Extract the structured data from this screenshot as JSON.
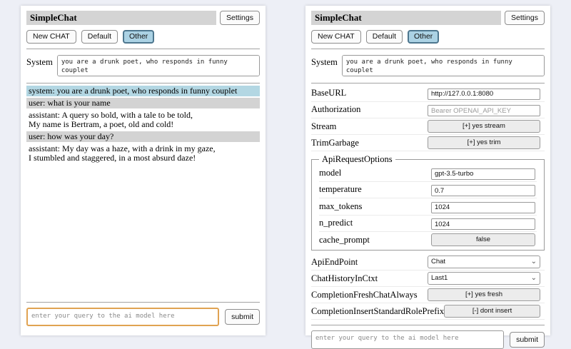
{
  "colors": {
    "active_tab_bg": "#abd2e4",
    "active_tab_border": "#4d768e",
    "system_msg_bg": "#b3d7e3",
    "user_msg_bg": "#d3d3d3",
    "titlebar_bg": "#d4d4d4",
    "query_focus_border": "#e0a352"
  },
  "header": {
    "title": "SimpleChat",
    "settings_button": "Settings"
  },
  "toolbar": {
    "new_chat": "New CHAT",
    "default_tab": "Default",
    "other_tab": "Other"
  },
  "system": {
    "label": "System",
    "value": "you are a drunk poet, who responds in funny couplet"
  },
  "chat": {
    "messages": [
      {
        "role": "system",
        "text": "system: you are a drunk poet, who responds in funny couplet"
      },
      {
        "role": "user",
        "text": "user: what is your name"
      },
      {
        "role": "assistant",
        "text": "assistant: A query so bold, with a tale to be told,\nMy name is Bertram, a poet, old and cold!"
      },
      {
        "role": "user",
        "text": "user: how was your day?"
      },
      {
        "role": "assistant",
        "text": "assistant: My day was a haze, with a drink in my gaze,\nI stumbled and staggered, in a most absurd daze!"
      }
    ]
  },
  "settings": {
    "base_url": {
      "label": "BaseURL",
      "value": "http://127.0.0.1:8080"
    },
    "authorization": {
      "label": "Authorization",
      "placeholder": "Bearer OPENAI_API_KEY"
    },
    "stream": {
      "label": "Stream",
      "button": "[+] yes stream"
    },
    "trim_garbage": {
      "label": "TrimGarbage",
      "button": "[+] yes trim"
    },
    "api_request_options": {
      "legend": "ApiRequestOptions",
      "model": {
        "label": "model",
        "value": "gpt-3.5-turbo"
      },
      "temperature": {
        "label": "temperature",
        "value": "0.7"
      },
      "max_tokens": {
        "label": "max_tokens",
        "value": "1024"
      },
      "n_predict": {
        "label": "n_predict",
        "value": "1024"
      },
      "cache_prompt": {
        "label": "cache_prompt",
        "button": "false"
      }
    },
    "api_endpoint": {
      "label": "ApiEndPoint",
      "selected": "Chat"
    },
    "chat_history_in_ctxt": {
      "label": "ChatHistoryInCtxt",
      "selected": "Last1"
    },
    "completion_fresh_chat_always": {
      "label": "CompletionFreshChatAlways",
      "button": "[+] yes fresh"
    },
    "completion_insert_standard_role_prefix": {
      "label": "CompletionInsertStandardRolePrefix",
      "button": "[-] dont insert"
    }
  },
  "query": {
    "placeholder": "enter your query to the ai model here",
    "submit": "submit"
  }
}
